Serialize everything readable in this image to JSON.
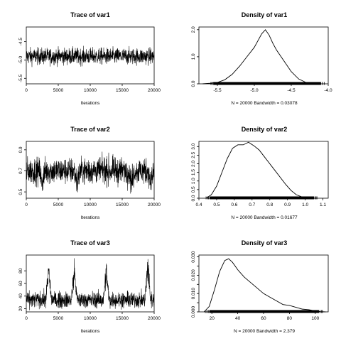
{
  "chart_data": [
    {
      "type": "line",
      "title": "Trace of var1",
      "xlabel": "Iterations",
      "ylabel": "",
      "xlim": [
        0,
        20000
      ],
      "ylim": [
        -5.65,
        -4.1
      ],
      "x_ticks": [
        0,
        5000,
        10000,
        15000,
        20000
      ],
      "y_ticks": [
        -5.5,
        -5.0,
        -4.5
      ],
      "x_tick_labels": [
        "0",
        "5000",
        "10000",
        "15000",
        "20000"
      ],
      "y_tick_labels": [
        "-5.5",
        "-5.0",
        "-4.5"
      ],
      "series": [
        {
          "mean": -4.9,
          "spread": 0.16,
          "n": 20000,
          "excursions": []
        }
      ]
    },
    {
      "type": "area",
      "title": "Density of var1",
      "xlabel": "N = 20000   Bandwidth = 0.03078",
      "ylabel": "",
      "xlim": [
        -5.75,
        -4.0
      ],
      "ylim": [
        0,
        2.1
      ],
      "x_ticks": [
        -5.5,
        -5.0,
        -4.5,
        -4.0
      ],
      "y_ticks": [
        0.0,
        1.0,
        2.0
      ],
      "x_tick_labels": [
        "-5.5",
        "-5.0",
        "-4.5",
        "-4.0"
      ],
      "y_tick_labels": [
        "0.0",
        "1.0",
        "2.0"
      ],
      "x": [
        -5.7,
        -5.6,
        -5.5,
        -5.4,
        -5.3,
        -5.2,
        -5.1,
        -5.0,
        -4.95,
        -4.9,
        -4.85,
        -4.8,
        -4.75,
        -4.7,
        -4.6,
        -4.5,
        -4.4,
        -4.3,
        -4.2,
        -4.1
      ],
      "y": [
        0.0,
        0.02,
        0.05,
        0.15,
        0.35,
        0.65,
        1.0,
        1.35,
        1.6,
        1.85,
        2.0,
        1.8,
        1.5,
        1.25,
        0.85,
        0.45,
        0.18,
        0.05,
        0.01,
        0.0
      ],
      "rug": [
        -5.55,
        -4.1
      ]
    },
    {
      "type": "line",
      "title": "Trace of var2",
      "xlabel": "Iterations",
      "ylabel": "",
      "xlim": [
        0,
        20000
      ],
      "ylim": [
        0.44,
        0.98
      ],
      "x_ticks": [
        0,
        5000,
        10000,
        15000,
        20000
      ],
      "y_ticks": [
        0.5,
        0.7,
        0.9
      ],
      "x_tick_labels": [
        "0",
        "5000",
        "10000",
        "15000",
        "20000"
      ],
      "y_tick_labels": [
        "0.5",
        "0.7",
        "0.9"
      ],
      "series": [
        {
          "mean": 0.7,
          "spread": 0.09,
          "n": 20000,
          "excursions": [
            [
              2500,
              -0.15
            ],
            [
              8000,
              -0.12
            ],
            [
              16500,
              -0.13
            ],
            [
              19500,
              -0.15
            ]
          ]
        }
      ]
    },
    {
      "type": "area",
      "title": "Density of var2",
      "xlabel": "N = 20000   Bandwidth = 0.01677",
      "ylabel": "",
      "xlim": [
        0.4,
        1.13
      ],
      "ylim": [
        0,
        3.3
      ],
      "x_ticks": [
        0.4,
        0.5,
        0.6,
        0.7,
        0.8,
        0.9,
        1.0,
        1.1
      ],
      "y_ticks": [
        0.0,
        0.5,
        1.0,
        1.5,
        2.0,
        2.5,
        3.0
      ],
      "x_tick_labels": [
        "0.4",
        "0.5",
        "0.6",
        "0.7",
        "0.8",
        "0.9",
        "1.0",
        "1.1"
      ],
      "y_tick_labels": [
        "0.0",
        "0.5",
        "1.0",
        "1.5",
        "2.0",
        "2.5",
        "3.0"
      ],
      "x": [
        0.44,
        0.47,
        0.5,
        0.53,
        0.56,
        0.59,
        0.62,
        0.65,
        0.68,
        0.71,
        0.74,
        0.77,
        0.8,
        0.83,
        0.86,
        0.89,
        0.92,
        0.95,
        0.98,
        1.01,
        1.04
      ],
      "y": [
        0.0,
        0.2,
        0.7,
        1.5,
        2.3,
        2.9,
        3.1,
        3.1,
        3.25,
        3.05,
        2.8,
        2.4,
        2.0,
        1.6,
        1.2,
        0.8,
        0.45,
        0.2,
        0.08,
        0.02,
        0.0
      ],
      "rug": [
        0.46,
        1.05
      ]
    },
    {
      "type": "line",
      "title": "Trace of var3",
      "xlabel": "Iterations",
      "ylabel": "",
      "xlim": [
        0,
        20000
      ],
      "ylim": [
        15,
        105
      ],
      "x_ticks": [
        0,
        5000,
        10000,
        15000,
        20000
      ],
      "y_ticks": [
        20,
        40,
        60,
        80
      ],
      "x_tick_labels": [
        "0",
        "5000",
        "10000",
        "15000",
        "20000"
      ],
      "y_tick_labels": [
        "20",
        "40",
        "60",
        "80"
      ],
      "series": [
        {
          "mean": 34,
          "spread": 9,
          "n": 20000,
          "excursions": [
            [
              3500,
              55
            ],
            [
              7500,
              55
            ],
            [
              12500,
              55
            ],
            [
              19000,
              65
            ]
          ]
        }
      ]
    },
    {
      "type": "area",
      "title": "Density of var3",
      "xlabel": "N = 20000   Bandwidth = 2.379",
      "ylabel": "",
      "xlim": [
        10,
        110
      ],
      "ylim": [
        0,
        0.031
      ],
      "x_ticks": [
        20,
        40,
        60,
        80,
        100
      ],
      "y_ticks": [
        0.0,
        0.005,
        0.01,
        0.015,
        0.02,
        0.025,
        0.03
      ],
      "x_tick_labels": [
        "20",
        "40",
        "60",
        "80",
        "100"
      ],
      "y_tick_labels": [
        "0.000",
        "",
        "0.010",
        "",
        "0.020",
        "",
        "0.030"
      ],
      "x": [
        14,
        18,
        22,
        26,
        30,
        33,
        36,
        40,
        45,
        50,
        55,
        60,
        65,
        70,
        75,
        80,
        85,
        90,
        95,
        100,
        104,
        108
      ],
      "y": [
        0.0,
        0.003,
        0.012,
        0.022,
        0.028,
        0.029,
        0.027,
        0.023,
        0.019,
        0.016,
        0.013,
        0.01,
        0.008,
        0.006,
        0.004,
        0.0035,
        0.0025,
        0.0015,
        0.0012,
        0.0005,
        0.0001,
        0.0
      ],
      "rug": [
        18,
        103
      ]
    }
  ]
}
